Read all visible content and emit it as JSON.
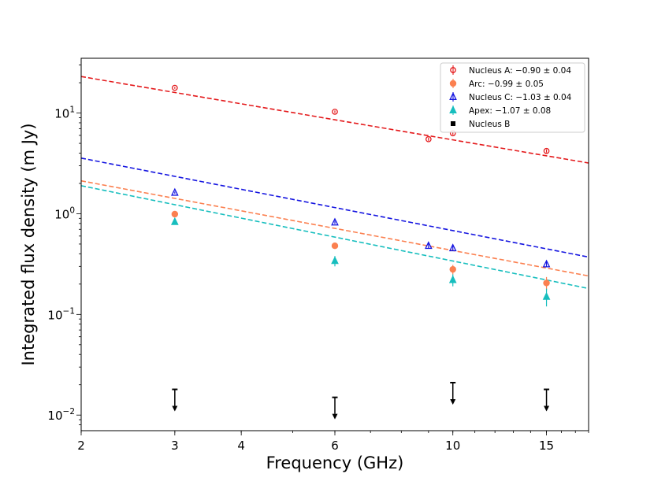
{
  "chart_data": {
    "type": "scatter",
    "title": "",
    "xlabel": "Frequency (GHz)",
    "ylabel": "Integrated flux density (m Jy)",
    "xscale": "log",
    "yscale": "log",
    "xlim": [
      2,
      18
    ],
    "ylim": [
      0.007,
      35
    ],
    "xticks": [
      2,
      3,
      4,
      6,
      10,
      15
    ],
    "yticks": [
      {
        "value": 0.01,
        "base": "10",
        "exp": "−2"
      },
      {
        "value": 0.1,
        "base": "10",
        "exp": "−1"
      },
      {
        "value": 1,
        "base": "10",
        "exp": "0"
      },
      {
        "value": 10,
        "base": "10",
        "exp": "1"
      }
    ],
    "legend_position": "top-right",
    "series": [
      {
        "name": "Nucleus A",
        "label": "Nucleus A: −0.90 ± 0.04",
        "color": "#e41a1c",
        "marker": "circle-open",
        "x": [
          3,
          6,
          9,
          10,
          15
        ],
        "y": [
          17.8,
          10.3,
          5.5,
          6.3,
          4.2
        ],
        "err": [
          0.4,
          0.3,
          0.2,
          0.2,
          0.15
        ],
        "fit": {
          "slope": -0.9,
          "amplitude": 16.0
        }
      },
      {
        "name": "Arc",
        "label": "Arc: −0.99 ± 0.05",
        "color": "#fb8050",
        "marker": "circle-filled",
        "x": [
          3,
          6,
          10,
          15
        ],
        "y": [
          0.99,
          0.48,
          0.28,
          0.205
        ],
        "err": [
          0.05,
          0.03,
          0.03,
          0.03
        ],
        "fit": {
          "slope": -0.99,
          "amplitude": 1.42
        }
      },
      {
        "name": "Nucleus C",
        "label": "Nucleus C: −1.03 ± 0.04",
        "color": "#1515e0",
        "marker": "triangle-open",
        "x": [
          3,
          6,
          9,
          10,
          15
        ],
        "y": [
          1.62,
          0.82,
          0.48,
          0.455,
          0.315
        ],
        "err": [
          0.04,
          0.03,
          0.03,
          0.03,
          0.02
        ],
        "fit": {
          "slope": -1.03,
          "amplitude": 2.35
        }
      },
      {
        "name": "Apex",
        "label": "Apex: −1.07 ± 0.08",
        "color": "#17bebe",
        "marker": "triangle-filled",
        "x": [
          3,
          6,
          10,
          15
        ],
        "y": [
          0.83,
          0.34,
          0.22,
          0.15
        ],
        "err": [
          0.05,
          0.04,
          0.03,
          0.03
        ],
        "fit": {
          "slope": -1.07,
          "amplitude": 1.23
        }
      },
      {
        "name": "Nucleus B",
        "label": "Nucleus B",
        "color": "#000000",
        "marker": "upper-limit",
        "x": [
          3,
          6,
          10,
          15
        ],
        "y": [
          0.018,
          0.015,
          0.021,
          0.018
        ]
      }
    ]
  }
}
